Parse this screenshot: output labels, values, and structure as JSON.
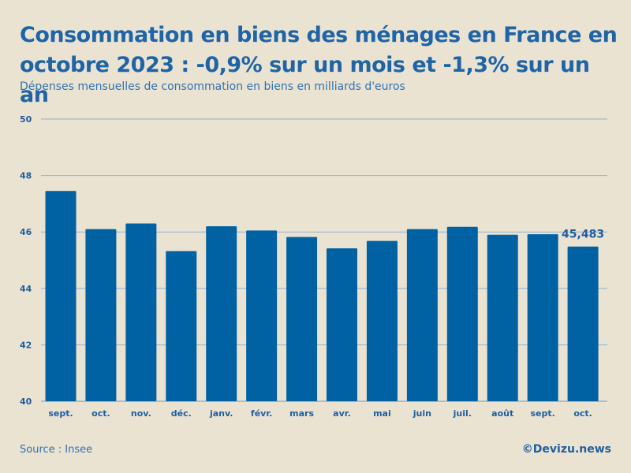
{
  "title": "Consommation en biens des ménages en France en octobre 2023 : -0,9% sur un mois et -1,3% sur un an",
  "subtitle": "Dépenses mensuelles de consommation en biens en milliards d'euros",
  "source": "Source : Insee",
  "credit": "©Devizu.news",
  "colors": {
    "background": "#ebe3d2",
    "bar": "#0062a3",
    "title": "#1f64a6",
    "axis_text": "#1f5e9e",
    "grid": "#8fb0cf"
  },
  "chart_data": {
    "type": "bar",
    "title": "Consommation en biens des ménages en France en octobre 2023 : -0,9% sur un mois et -1,3% sur un an",
    "ylabel": "Dépenses mensuelles de consommation en biens en milliards d'euros",
    "xlabel": "",
    "ylim": [
      40,
      50
    ],
    "yticks": [
      40,
      42,
      44,
      46,
      48,
      50
    ],
    "grid": true,
    "categories": [
      "sept.",
      "oct.",
      "nov.",
      "déc.",
      "janv.",
      "févr.",
      "mars",
      "avr.",
      "mai",
      "juin",
      "juil.",
      "août",
      "sept.",
      "oct."
    ],
    "values": [
      47.45,
      46.1,
      46.3,
      45.32,
      46.2,
      46.05,
      45.82,
      45.42,
      45.68,
      46.1,
      46.18,
      45.9,
      45.92,
      45.483
    ],
    "annotations": [
      {
        "index": 13,
        "text": "45,483"
      }
    ]
  }
}
